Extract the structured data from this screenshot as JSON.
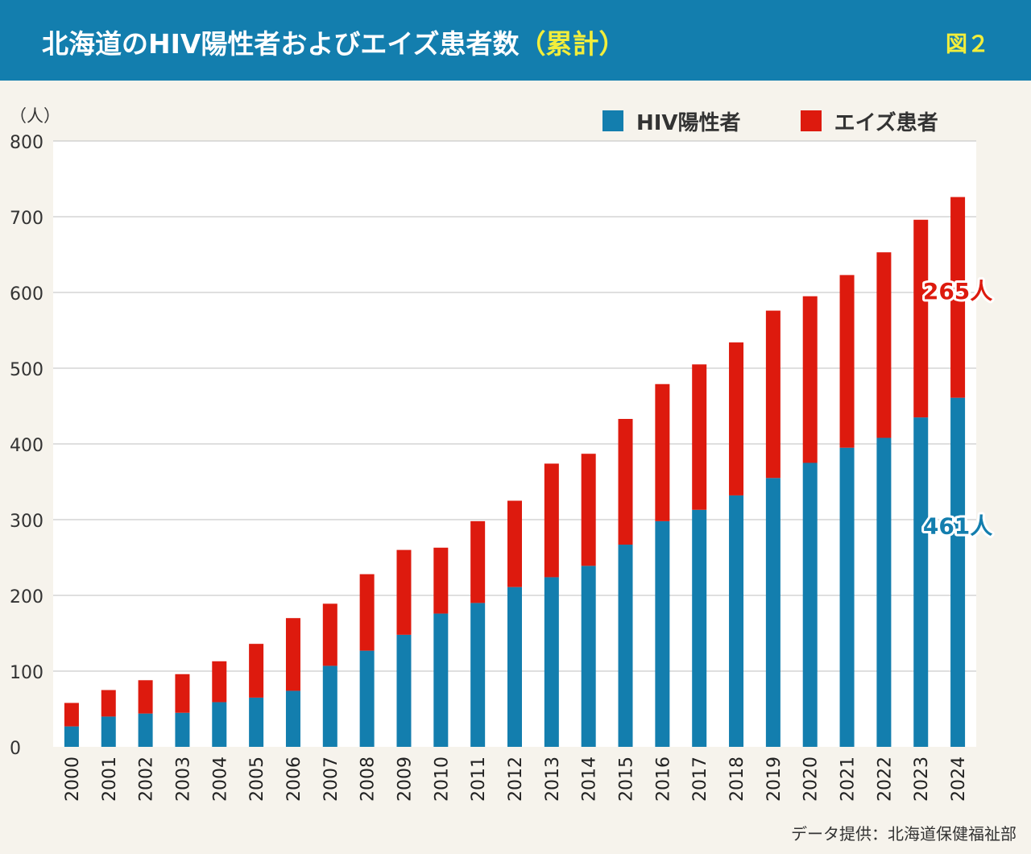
{
  "header": {
    "title_main": "北海道のHIV陽性者およびエイズ患者数",
    "title_accent": "（累計）",
    "figure_label": "図２"
  },
  "unit_label": "（人）",
  "legend": [
    {
      "label": "HIV陽性者",
      "color": "#137eae"
    },
    {
      "label": "エイズ患者",
      "color": "#dd1a0e"
    }
  ],
  "source": "データ提供：北海道保健福祉部",
  "chart_data": {
    "type": "bar",
    "stacked": true,
    "title": "北海道のHIV陽性者およびエイズ患者数（累計）",
    "xlabel": "",
    "ylabel": "（人）",
    "ylim": [
      0,
      800
    ],
    "yticks": [
      0,
      100,
      200,
      300,
      400,
      500,
      600,
      700,
      800
    ],
    "categories": [
      "2000",
      "2001",
      "2002",
      "2003",
      "2004",
      "2005",
      "2006",
      "2007",
      "2008",
      "2009",
      "2010",
      "2011",
      "2012",
      "2013",
      "2014",
      "2015",
      "2016",
      "2017",
      "2018",
      "2019",
      "2020",
      "2021",
      "2022",
      "2023",
      "2024"
    ],
    "series": [
      {
        "name": "HIV陽性者",
        "color": "#137eae",
        "values": [
          27,
          40,
          44,
          45,
          59,
          65,
          74,
          107,
          127,
          148,
          176,
          190,
          211,
          224,
          239,
          267,
          298,
          313,
          332,
          355,
          375,
          395,
          408,
          435,
          461
        ]
      },
      {
        "name": "エイズ患者",
        "color": "#dd1a0e",
        "values": [
          31,
          35,
          44,
          51,
          54,
          71,
          96,
          82,
          101,
          112,
          87,
          108,
          114,
          150,
          148,
          166,
          181,
          192,
          202,
          221,
          220,
          228,
          245,
          261,
          265
        ]
      }
    ],
    "annotations": [
      {
        "category": "2024",
        "series": "エイズ患者",
        "text": "265人",
        "color": "#dd1a0e"
      },
      {
        "category": "2024",
        "series": "HIV陽性者",
        "text": "461人",
        "color": "#137eae"
      }
    ]
  }
}
